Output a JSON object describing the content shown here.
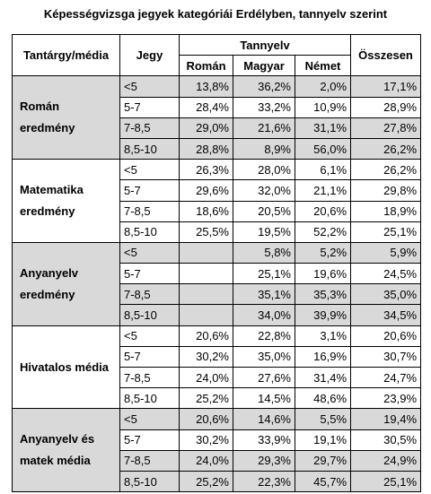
{
  "title": "Képességvizsga jegyek kategóriái Erdélyben, tannyelv szerint",
  "table": {
    "header": {
      "subject": "Tantárgy/média",
      "grade": "Jegy",
      "language_group": "Tannyelv",
      "languages": [
        "Román",
        "Magyar",
        "Német"
      ],
      "total": "Összesen"
    },
    "groups": [
      {
        "label": "Román eredmény",
        "rows": [
          {
            "grade": "<5",
            "values": [
              "13,8%",
              "36,2%",
              "2,0%"
            ],
            "total": "17,1%"
          },
          {
            "grade": "5-7",
            "values": [
              "28,4%",
              "33,2%",
              "10,9%"
            ],
            "total": "28,9%"
          },
          {
            "grade": "7-8,5",
            "values": [
              "29,0%",
              "21,6%",
              "31,1%"
            ],
            "total": "27,8%"
          },
          {
            "grade": "8,5-10",
            "values": [
              "28,8%",
              "8,9%",
              "56,0%"
            ],
            "total": "26,2%"
          }
        ]
      },
      {
        "label": "Matematika eredmény",
        "rows": [
          {
            "grade": "<5",
            "values": [
              "26,3%",
              "28,0%",
              "6,1%"
            ],
            "total": "26,2%"
          },
          {
            "grade": "5-7",
            "values": [
              "29,6%",
              "32,0%",
              "21,1%"
            ],
            "total": "29,8%"
          },
          {
            "grade": "7-8,5",
            "values": [
              "18,6%",
              "20,5%",
              "20,6%"
            ],
            "total": "18,9%"
          },
          {
            "grade": "8,5-10",
            "values": [
              "25,5%",
              "19,5%",
              "52,2%"
            ],
            "total": "25,1%"
          }
        ]
      },
      {
        "label": "Anyanyelv eredmény",
        "rows": [
          {
            "grade": "<5",
            "values": [
              null,
              "5,8%",
              "5,2%"
            ],
            "total": "5,9%"
          },
          {
            "grade": "5-7",
            "values": [
              null,
              "25,1%",
              "19,6%"
            ],
            "total": "24,5%"
          },
          {
            "grade": "7-8,5",
            "values": [
              null,
              "35,1%",
              "35,3%"
            ],
            "total": "35,0%"
          },
          {
            "grade": "8,5-10",
            "values": [
              null,
              "34,0%",
              "39,9%"
            ],
            "total": "34,5%"
          }
        ]
      },
      {
        "label": "Hivatalos média",
        "rows": [
          {
            "grade": "<5",
            "values": [
              "20,6%",
              "22,8%",
              "3,1%"
            ],
            "total": "20,6%"
          },
          {
            "grade": "5-7",
            "values": [
              "30,2%",
              "35,0%",
              "16,9%"
            ],
            "total": "30,7%"
          },
          {
            "grade": "7-8,5",
            "values": [
              "24,0%",
              "27,6%",
              "31,4%"
            ],
            "total": "24,7%"
          },
          {
            "grade": "8,5-10",
            "values": [
              "25,2%",
              "14,5%",
              "48,6%"
            ],
            "total": "23,9%"
          }
        ]
      },
      {
        "label": "Anyanyelv és matek média",
        "rows": [
          {
            "grade": "<5",
            "values": [
              "20,6%",
              "14,6%",
              "5,5%"
            ],
            "total": "19,4%"
          },
          {
            "grade": "5-7",
            "values": [
              "30,2%",
              "33,9%",
              "19,1%"
            ],
            "total": "30,5%"
          },
          {
            "grade": "7-8,5",
            "values": [
              "24,0%",
              "29,3%",
              "29,7%"
            ],
            "total": "24,9%"
          },
          {
            "grade": "8,5-10",
            "values": [
              "25,2%",
              "22,3%",
              "45,7%"
            ],
            "total": "25,1%"
          }
        ]
      }
    ]
  }
}
